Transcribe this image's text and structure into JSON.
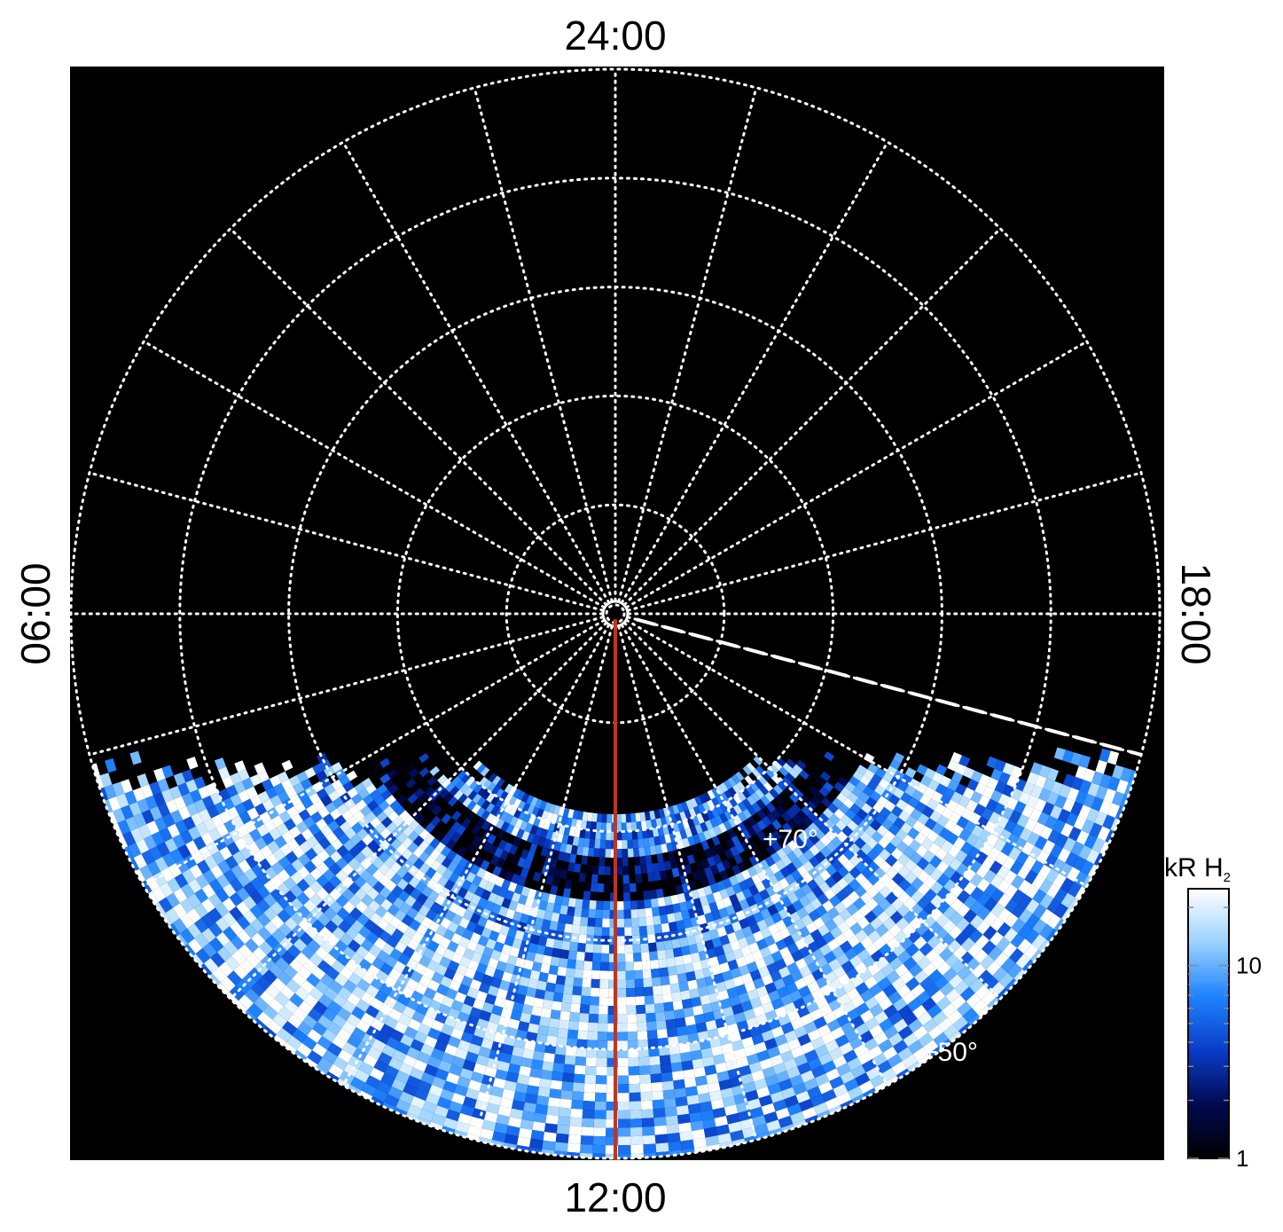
{
  "chart_data": {
    "type": "heatmap",
    "projection": "polar-stereographic",
    "title": "",
    "local_time_labels": {
      "top": "24:00",
      "bottom": "12:00",
      "left": "06:00",
      "right": "18:00"
    },
    "latitude_labels": [
      "+70°",
      "+50°"
    ],
    "latitude_grid_deg": [
      90,
      80,
      70,
      60,
      50,
      40
    ],
    "longitude_grid_step_hours": 1,
    "grid": true,
    "colorbar": {
      "label": "kR H",
      "label_subscript": "2",
      "scale": "log",
      "range": [
        1,
        25
      ],
      "ticks": [
        {
          "value": 1,
          "label": "1"
        },
        {
          "value": 10,
          "label": "10"
        }
      ],
      "colors": [
        "#000000",
        "#000a50",
        "#0a3cc8",
        "#1e82ff",
        "#9ad2ff",
        "#ffffff"
      ]
    },
    "annotations": [
      {
        "type": "line",
        "color": "#d03010",
        "local_time_h": 12,
        "description": "sub-observer meridian"
      },
      {
        "type": "dashed-line",
        "color": "#ffffff",
        "local_time_h": 17
      }
    ],
    "emission_coverage": {
      "description": "observed H2 emission only on dayside hemisphere",
      "bands": [
        {
          "colatitude_deg": [
            18,
            22
          ],
          "mean_kR": 8
        },
        {
          "colatitude_deg": [
            22,
            26
          ],
          "mean_kR": 1.5
        },
        {
          "colatitude_deg": [
            26,
            32
          ],
          "mean_kR": 10
        },
        {
          "colatitude_deg": [
            32,
            50
          ],
          "mean_kR": 13
        }
      ]
    }
  }
}
